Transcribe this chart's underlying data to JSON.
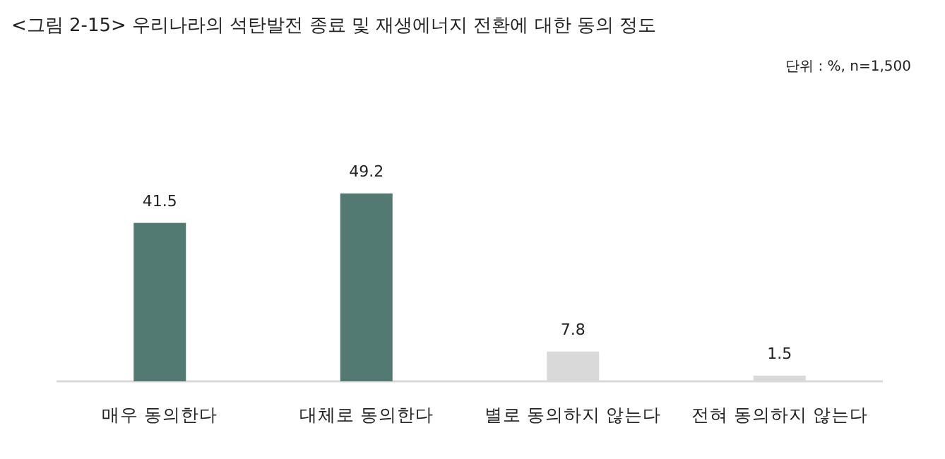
{
  "chart_data": {
    "type": "bar",
    "title": "<그림 2-15> 우리나라의 석탄발전 종료 및 재생에너지 전환에 대한 동의 정도",
    "annotations": [
      "단위 : %, n=1,500"
    ],
    "categories": [
      "매우 동의한다",
      "대체로 동의한다",
      "별로 동의하지 않는다",
      "전혀 동의하지 않는다"
    ],
    "values": [
      41.5,
      49.2,
      7.8,
      1.5
    ],
    "colors": [
      "#527a72",
      "#527a72",
      "#d9d9d9",
      "#d9d9d9"
    ],
    "data_labels": true
  }
}
